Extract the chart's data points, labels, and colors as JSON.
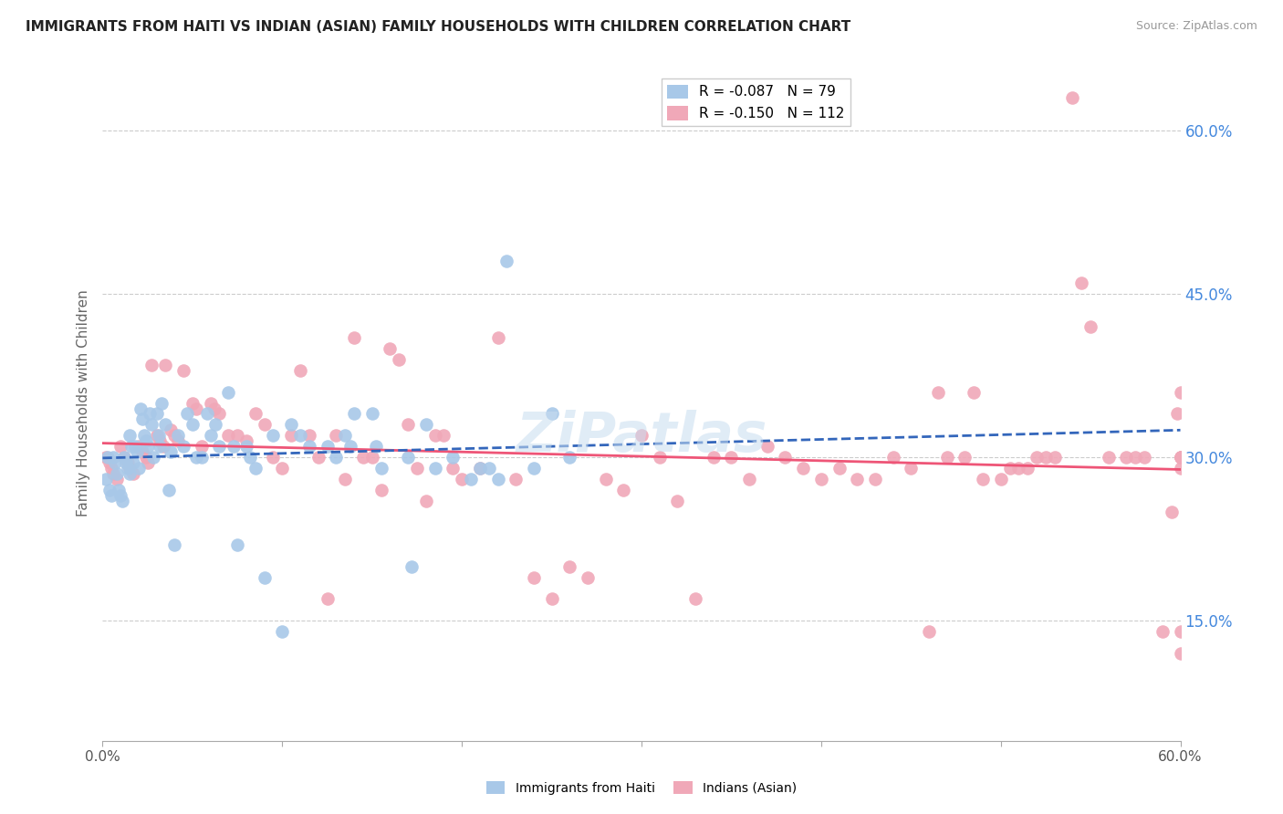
{
  "title": "IMMIGRANTS FROM HAITI VS INDIAN (ASIAN) FAMILY HOUSEHOLDS WITH CHILDREN CORRELATION CHART",
  "source": "Source: ZipAtlas.com",
  "ylabel": "Family Households with Children",
  "legend_haiti_R": "-0.087",
  "legend_haiti_N": "79",
  "legend_indian_R": "-0.150",
  "legend_indian_N": "112",
  "haiti_color": "#a8c8e8",
  "indian_color": "#f0a8b8",
  "haiti_line_color": "#3366bb",
  "indian_line_color": "#ee5577",
  "watermark": "ZiPatlas",
  "haiti_x": [
    0.2,
    0.3,
    0.4,
    0.5,
    0.6,
    0.7,
    0.8,
    0.9,
    1.0,
    1.1,
    1.2,
    1.3,
    1.4,
    1.5,
    1.5,
    1.6,
    1.7,
    1.8,
    1.9,
    2.0,
    2.1,
    2.2,
    2.3,
    2.4,
    2.5,
    2.6,
    2.7,
    2.8,
    3.0,
    3.1,
    3.2,
    3.3,
    3.5,
    3.7,
    3.8,
    4.0,
    4.2,
    4.5,
    4.7,
    5.0,
    5.2,
    5.5,
    5.8,
    6.0,
    6.3,
    6.5,
    7.0,
    7.3,
    7.5,
    8.0,
    8.2,
    8.5,
    9.0,
    9.5,
    10.0,
    10.5,
    11.0,
    11.5,
    12.5,
    13.0,
    13.5,
    13.8,
    14.0,
    15.0,
    15.2,
    15.5,
    17.0,
    17.2,
    18.0,
    18.5,
    19.5,
    20.5,
    21.0,
    21.5,
    22.0,
    22.5,
    24.0,
    25.0,
    26.0
  ],
  "haiti_y": [
    28.0,
    30.0,
    27.0,
    26.5,
    30.0,
    29.5,
    28.5,
    27.0,
    26.5,
    26.0,
    30.0,
    29.5,
    29.0,
    28.5,
    32.0,
    31.0,
    29.5,
    31.0,
    30.5,
    29.0,
    34.5,
    33.5,
    32.0,
    31.5,
    31.0,
    34.0,
    33.0,
    30.0,
    34.0,
    32.0,
    31.0,
    35.0,
    33.0,
    27.0,
    30.5,
    22.0,
    32.0,
    31.0,
    34.0,
    33.0,
    30.0,
    30.0,
    34.0,
    32.0,
    33.0,
    31.0,
    36.0,
    31.0,
    22.0,
    31.0,
    30.0,
    29.0,
    19.0,
    32.0,
    14.0,
    33.0,
    32.0,
    31.0,
    31.0,
    30.0,
    32.0,
    31.0,
    34.0,
    34.0,
    31.0,
    29.0,
    30.0,
    20.0,
    33.0,
    29.0,
    30.0,
    28.0,
    29.0,
    29.0,
    28.0,
    48.0,
    29.0,
    34.0,
    30.0
  ],
  "indian_x": [
    0.2,
    0.4,
    0.5,
    0.6,
    0.8,
    1.0,
    1.2,
    1.4,
    1.5,
    1.7,
    2.0,
    2.2,
    2.4,
    2.5,
    2.7,
    3.0,
    3.2,
    3.4,
    3.5,
    3.8,
    4.0,
    4.2,
    4.5,
    5.0,
    5.2,
    5.5,
    6.0,
    6.2,
    6.5,
    7.0,
    7.5,
    8.0,
    8.5,
    9.0,
    9.5,
    10.0,
    10.5,
    11.0,
    11.5,
    12.0,
    12.5,
    13.0,
    13.5,
    14.0,
    14.5,
    15.0,
    15.5,
    16.0,
    16.5,
    17.0,
    17.5,
    18.0,
    18.5,
    19.0,
    19.5,
    20.0,
    21.0,
    22.0,
    23.0,
    24.0,
    25.0,
    26.0,
    27.0,
    28.0,
    29.0,
    30.0,
    31.0,
    32.0,
    33.0,
    34.0,
    35.0,
    36.0,
    37.0,
    38.0,
    39.0,
    40.0,
    41.0,
    42.0,
    43.0,
    44.0,
    45.0,
    46.0,
    46.5,
    47.0,
    48.0,
    48.5,
    49.0,
    50.0,
    50.5,
    51.0,
    51.5,
    52.0,
    52.5,
    53.0,
    54.0,
    54.5,
    55.0,
    56.0,
    57.0,
    57.5,
    58.0,
    59.0,
    59.5,
    59.8,
    60.0,
    60.0,
    60.0,
    60.0,
    60.0,
    60.0,
    60.0,
    60.0
  ],
  "indian_y": [
    30.0,
    29.5,
    29.0,
    28.5,
    28.0,
    31.0,
    30.0,
    29.5,
    29.0,
    28.5,
    31.0,
    30.5,
    30.0,
    29.5,
    38.5,
    32.0,
    31.5,
    31.0,
    38.5,
    32.5,
    32.0,
    31.5,
    38.0,
    35.0,
    34.5,
    31.0,
    35.0,
    34.5,
    34.0,
    32.0,
    32.0,
    31.5,
    34.0,
    33.0,
    30.0,
    29.0,
    32.0,
    38.0,
    32.0,
    30.0,
    17.0,
    32.0,
    28.0,
    41.0,
    30.0,
    30.0,
    27.0,
    40.0,
    39.0,
    33.0,
    29.0,
    26.0,
    32.0,
    32.0,
    29.0,
    28.0,
    29.0,
    41.0,
    28.0,
    19.0,
    17.0,
    20.0,
    19.0,
    28.0,
    27.0,
    32.0,
    30.0,
    26.0,
    17.0,
    30.0,
    30.0,
    28.0,
    31.0,
    30.0,
    29.0,
    28.0,
    29.0,
    28.0,
    28.0,
    30.0,
    29.0,
    14.0,
    36.0,
    30.0,
    30.0,
    36.0,
    28.0,
    28.0,
    29.0,
    29.0,
    29.0,
    30.0,
    30.0,
    30.0,
    63.0,
    46.0,
    42.0,
    30.0,
    30.0,
    30.0,
    30.0,
    14.0,
    25.0,
    34.0,
    36.0,
    29.0,
    30.0,
    14.0,
    12.0,
    30.0,
    30.0,
    30.0
  ]
}
